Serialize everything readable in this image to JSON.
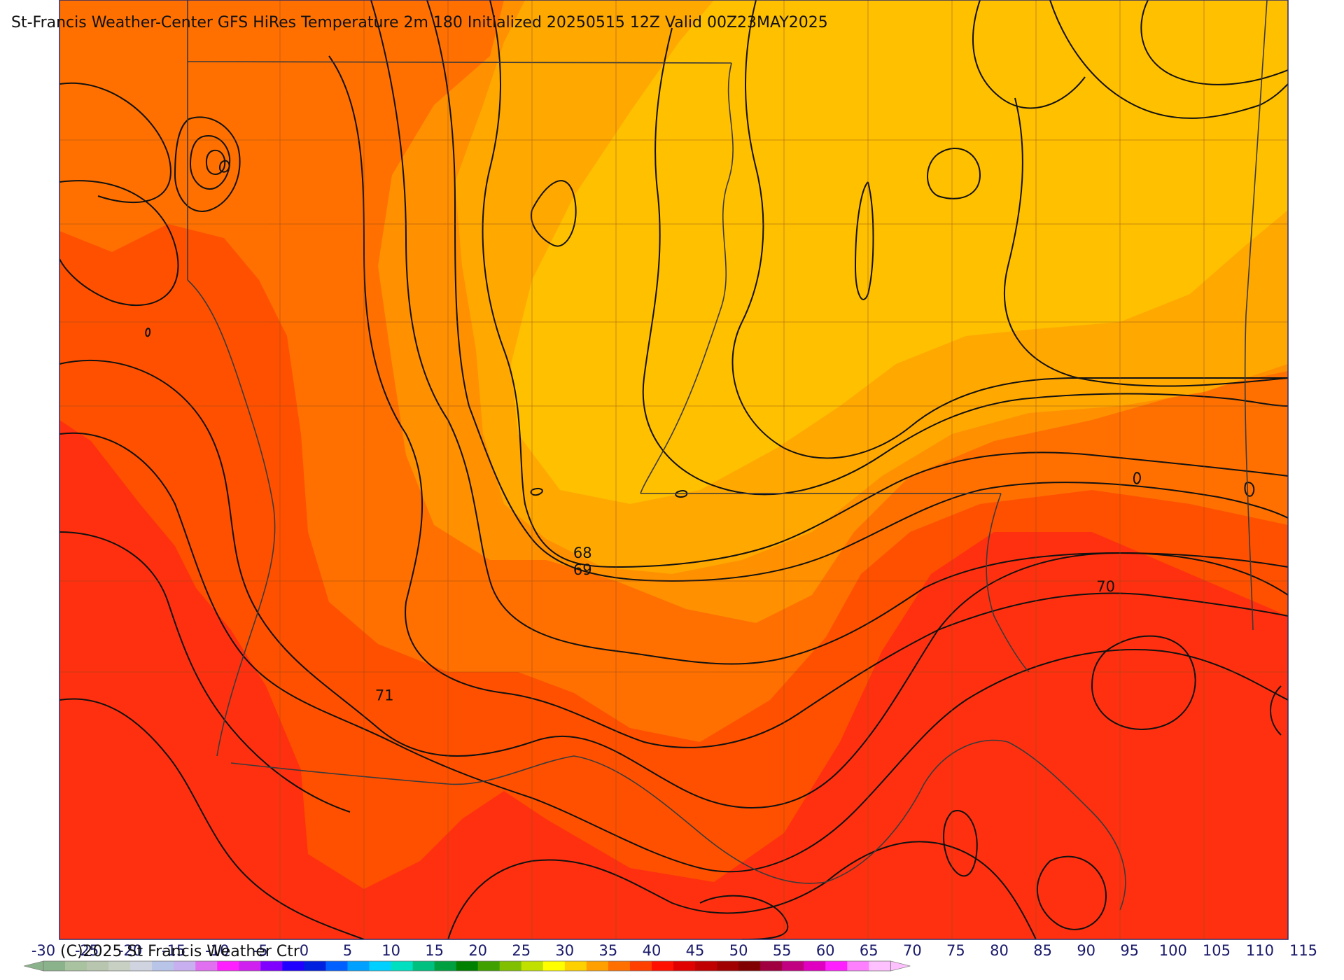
{
  "title": "St-Francis Weather-Center GFS HiRes Temperature 2m  180 Initialized 20250515 12Z Valid 00Z23MAY2025",
  "copyright": "(C)2025 St Francis Weather Ctr",
  "map": {
    "field": "2m temperature",
    "fill_colors": {
      "67": "#ffc000",
      "68": "#ffa800",
      "69": "#ff9000",
      "70": "#ff7000",
      "71": "#ff5000",
      "72": "#ff3010"
    },
    "contour_color": "#111111",
    "border_color": "#333333",
    "contour_labels": [
      {
        "text": "68",
        "lon": -90.9,
        "lat": 31.6
      },
      {
        "text": "69",
        "lon": -90.9,
        "lat": 31.4
      },
      {
        "text": "70",
        "lon": -84.3,
        "lat": 31.2
      },
      {
        "text": "71",
        "lon": -93.4,
        "lat": 29.9
      }
    ]
  },
  "colorbar": {
    "ticks": [
      "-30",
      "-25",
      "-20",
      "-15",
      "-10",
      "-5",
      "0",
      "5",
      "10",
      "15",
      "20",
      "25",
      "30",
      "35",
      "40",
      "45",
      "50",
      "55",
      "60",
      "65",
      "70",
      "75",
      "80",
      "85",
      "90",
      "95",
      "100",
      "105",
      "110",
      "115"
    ],
    "colors": [
      "#8bb38b",
      "#a9c3a0",
      "#b8c6b0",
      "#c8d0c4",
      "#d0d4e0",
      "#b8c4e8",
      "#c8b0f0",
      "#e070f0",
      "#ff20ff",
      "#d020f0",
      "#8000ff",
      "#2000ff",
      "#0020e0",
      "#0060ff",
      "#00a0ff",
      "#00d0ff",
      "#00e0c0",
      "#00c080",
      "#00a040",
      "#008000",
      "#40a000",
      "#80c000",
      "#c0e000",
      "#ffff00",
      "#ffd000",
      "#ffa000",
      "#ff7000",
      "#ff4000",
      "#ff1000",
      "#e00000",
      "#c00000",
      "#a00000",
      "#800000",
      "#a00040",
      "#c00080",
      "#e000c0",
      "#ff20ff",
      "#ff80ff",
      "#ffc0ff"
    ]
  }
}
